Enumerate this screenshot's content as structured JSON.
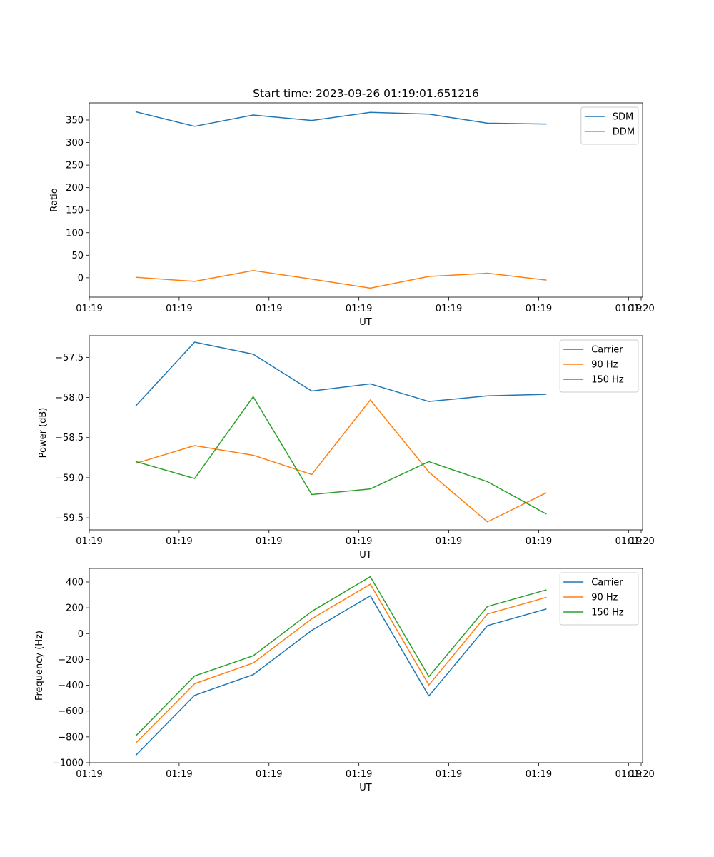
{
  "figure_title": "Start time: 2023-09-26 01:19:01.651216",
  "chart_data": [
    {
      "type": "line",
      "title": "Start time: 2023-09-26 01:19:01.651216",
      "xlabel": "UT",
      "ylabel": "Ratio",
      "x": [
        1,
        2,
        3,
        4,
        5,
        6,
        7,
        8
      ],
      "xlim": [
        0.2,
        9.65
      ],
      "xticks": [
        0.2,
        1.735,
        3.27,
        4.805,
        6.34,
        7.875,
        9.41
      ],
      "xtick_labels": [
        "01:19",
        "01:19",
        "01:19",
        "01:19",
        "01:19",
        "01:19",
        "01:19"
      ],
      "extra_xtick_label": "01:20",
      "ylim": [
        -43,
        388
      ],
      "yticks": [
        0,
        50,
        100,
        150,
        200,
        250,
        300,
        350
      ],
      "ytick_labels": [
        "0",
        "50",
        "100",
        "150",
        "200",
        "250",
        "300",
        "350"
      ],
      "legend_position": "upper-right",
      "series": [
        {
          "name": "SDM",
          "color": "#1f77b4",
          "values": [
            368,
            336,
            361,
            349,
            367,
            363,
            343,
            341
          ]
        },
        {
          "name": "DDM",
          "color": "#ff7f0e",
          "values": [
            1,
            -8,
            16,
            -3,
            -23,
            3,
            10,
            -5
          ]
        }
      ]
    },
    {
      "type": "line",
      "title": "",
      "xlabel": "UT",
      "ylabel": "Power (dB)",
      "x": [
        1,
        2,
        3,
        4,
        5,
        6,
        7,
        8
      ],
      "xlim": [
        0.2,
        9.65
      ],
      "xticks": [
        0.2,
        1.735,
        3.27,
        4.805,
        6.34,
        7.875,
        9.41
      ],
      "xtick_labels": [
        "01:19",
        "01:19",
        "01:19",
        "01:19",
        "01:19",
        "01:19",
        "01:19"
      ],
      "extra_xtick_label": "01:20",
      "ylim": [
        -59.65,
        -57.23
      ],
      "yticks": [
        -59.5,
        -59.0,
        -58.5,
        -58.0,
        -57.5
      ],
      "ytick_labels": [
        "−59.5",
        "−59.0",
        "−58.5",
        "−58.0",
        "−57.5"
      ],
      "legend_position": "upper-right",
      "series": [
        {
          "name": "Carrier",
          "color": "#1f77b4",
          "values": [
            -58.1,
            -57.31,
            -57.46,
            -57.92,
            -57.83,
            -58.05,
            -57.98,
            -57.96
          ]
        },
        {
          "name": "90 Hz",
          "color": "#ff7f0e",
          "values": [
            -58.82,
            -58.6,
            -58.72,
            -58.96,
            -58.03,
            -58.93,
            -59.55,
            -59.19
          ]
        },
        {
          "name": "150 Hz",
          "color": "#2ca02c",
          "values": [
            -58.8,
            -59.01,
            -57.99,
            -59.21,
            -59.14,
            -58.8,
            -59.05,
            -59.45
          ]
        }
      ]
    },
    {
      "type": "line",
      "title": "",
      "xlabel": "UT",
      "ylabel": "Frequency (Hz)",
      "x": [
        1,
        2,
        3,
        4,
        5,
        6,
        7,
        8
      ],
      "xlim": [
        0.2,
        9.65
      ],
      "xticks": [
        0.2,
        1.735,
        3.27,
        4.805,
        6.34,
        7.875,
        9.41
      ],
      "xtick_labels": [
        "01:19",
        "01:19",
        "01:19",
        "01:19",
        "01:19",
        "01:19",
        "01:19"
      ],
      "extra_xtick_label": "01:20",
      "ylim": [
        -1000,
        505
      ],
      "yticks": [
        -1000,
        -800,
        -600,
        -400,
        -200,
        0,
        200,
        400
      ],
      "ytick_labels": [
        "−1000",
        "−800",
        "−600",
        "−400",
        "−200",
        "0",
        "200",
        "400"
      ],
      "legend_position": "upper-right",
      "series": [
        {
          "name": "Carrier",
          "color": "#1f77b4",
          "values": [
            -940,
            -478,
            -318,
            25,
            293,
            -483,
            62,
            190
          ]
        },
        {
          "name": "90 Hz",
          "color": "#ff7f0e",
          "values": [
            -845,
            -388,
            -228,
            115,
            383,
            -398,
            152,
            280
          ]
        },
        {
          "name": "150 Hz",
          "color": "#2ca02c",
          "values": [
            -790,
            -328,
            -172,
            172,
            441,
            -333,
            210,
            338
          ]
        }
      ]
    }
  ]
}
